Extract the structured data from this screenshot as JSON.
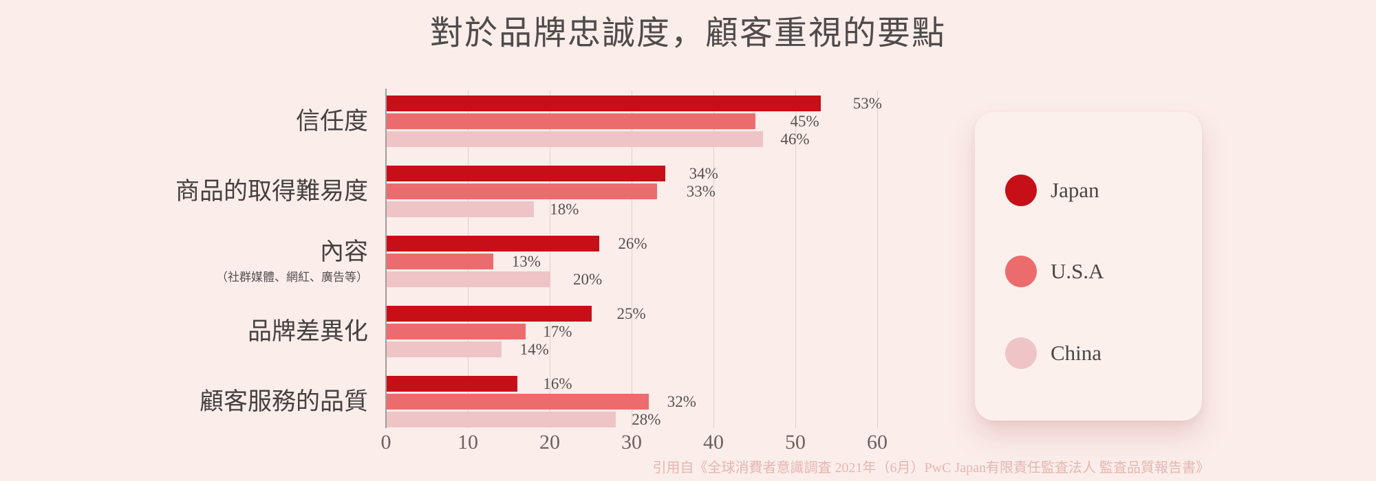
{
  "title": "對於品牌忠誠度，顧客重視的要點",
  "source_note": "引用自《全球消費者意識調査 2021年（6月）PwC Japan有限責任監査法人 監査品質報告書》",
  "colors": {
    "background": "#FBEDEA",
    "japan": "#C70F18",
    "usa": "#EC6C6D",
    "china": "#EEC4C6",
    "gridline": "#DCD0CE",
    "axis_line": "#A39D9B",
    "title_text": "#4F4B4B",
    "category_text": "#454140",
    "tick_text": "#6D625F",
    "value_text": "#56504F",
    "footer_text": "#E4B6B3",
    "legend_bg": "#FCF0ED"
  },
  "legend": {
    "position": "right",
    "items": [
      {
        "label": "Japan",
        "color": "#C70F18"
      },
      {
        "label": "U.S.A",
        "color": "#EC6C6D"
      },
      {
        "label": "China",
        "color": "#EEC4C6"
      }
    ]
  },
  "chart_data": {
    "type": "bar",
    "orientation": "horizontal",
    "title": "對於品牌忠誠度，顧客重視的要點",
    "xlabel": "",
    "ylabel": "",
    "xlim": [
      0,
      60
    ],
    "xticks": [
      0,
      10,
      20,
      30,
      40,
      50,
      60
    ],
    "grid": "vertical",
    "legend_position": "right",
    "value_suffix": "%",
    "categories": [
      {
        "label": "信任度",
        "sublabel": ""
      },
      {
        "label": "商品的取得難易度",
        "sublabel": ""
      },
      {
        "label": "內容",
        "sublabel": "（社群媒體、網紅、廣告等）"
      },
      {
        "label": "品牌差異化",
        "sublabel": ""
      },
      {
        "label": "顧客服務的品質",
        "sublabel": ""
      }
    ],
    "series": [
      {
        "name": "Japan",
        "values": [
          53,
          34,
          26,
          25,
          16
        ]
      },
      {
        "name": "U.S.A",
        "values": [
          45,
          33,
          13,
          17,
          32
        ]
      },
      {
        "name": "China",
        "values": [
          46,
          18,
          20,
          14,
          28
        ]
      }
    ],
    "label_offsets": [
      [
        48,
        52,
        26
      ],
      [
        36,
        44,
        24
      ],
      [
        28,
        28,
        34
      ],
      [
        38,
        26,
        28
      ],
      [
        38,
        28,
        24
      ]
    ]
  }
}
